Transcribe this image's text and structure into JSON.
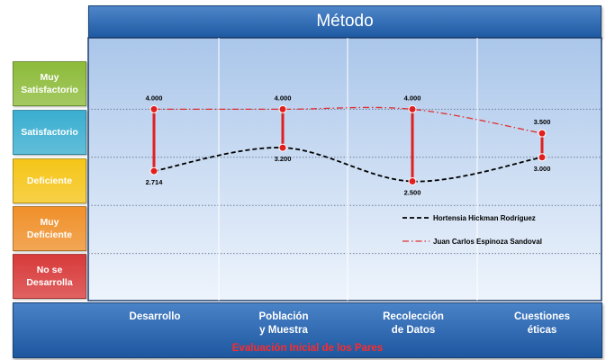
{
  "chart_data": {
    "type": "line",
    "title": "Método",
    "xlabel": "Evaluación Inicial de los Pares",
    "categories": [
      "Desarrollo",
      "Población\ny Muestra",
      "Recolección\nde Datos",
      "Cuestiones\néticas"
    ],
    "ylevels": [
      {
        "label": "Muy\nSatisfactorio",
        "color": "#8dbb3a"
      },
      {
        "label": "Satisfactorio",
        "color": "#3aaed0"
      },
      {
        "label": "Deficiente",
        "color": "#f5c518"
      },
      {
        "label": "Muy\nDeficiente",
        "color": "#f0902a"
      },
      {
        "label": "No se\nDesarrolla",
        "color": "#d83a3a"
      }
    ],
    "ylim": [
      0,
      5
    ],
    "grid": true,
    "legend_position": "bottom-right",
    "series": [
      {
        "name": "Hortensia Hickman Rodríguez",
        "values": [
          2.714,
          3.2,
          2.5,
          3.0
        ],
        "labels": [
          "2.714",
          "3.200",
          "2.500",
          "3.000"
        ],
        "color": "#000000",
        "dash": "dashed"
      },
      {
        "name": "Juan Carlos Espinoza Sandoval",
        "values": [
          4.0,
          4.0,
          4.0,
          3.5
        ],
        "labels": [
          "4.000",
          "4.000",
          "4.000",
          "3.500"
        ],
        "color": "#e03030",
        "dash": "dashdot"
      }
    ]
  }
}
